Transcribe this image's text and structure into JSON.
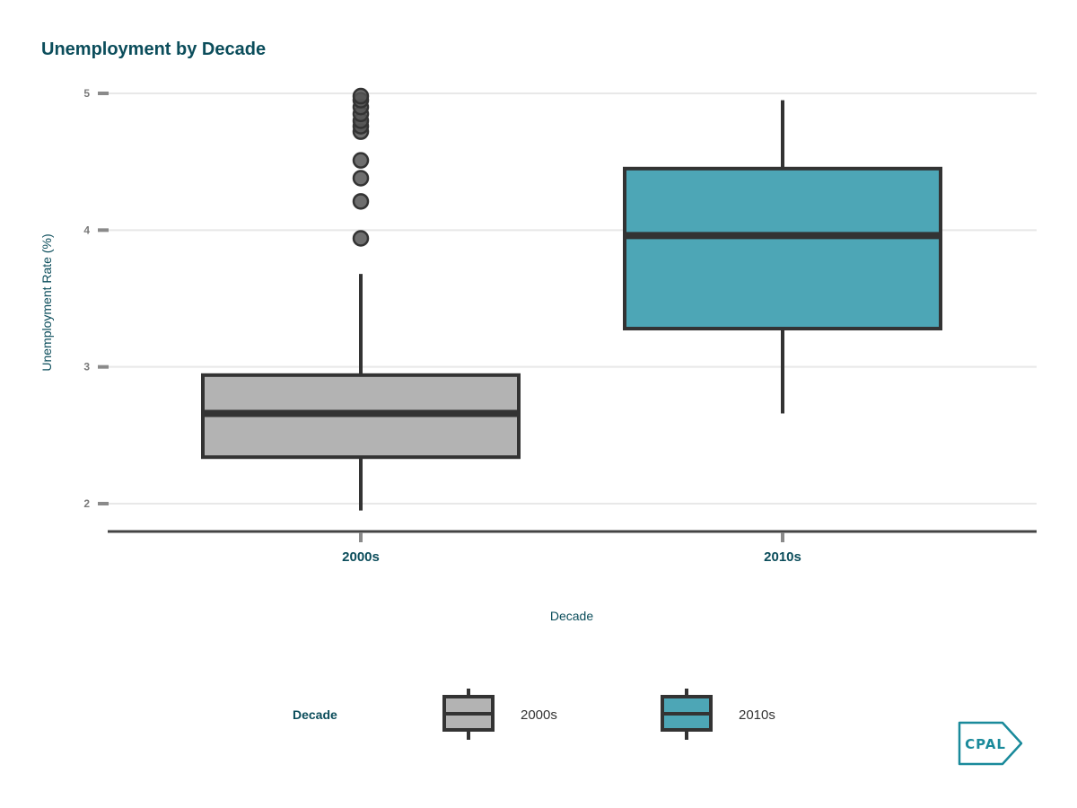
{
  "chart_data": {
    "type": "boxplot",
    "title": "Unemployment by Decade",
    "xlabel": "Decade",
    "ylabel": "Unemployment Rate (%)",
    "categories": [
      "2000s",
      "2010s"
    ],
    "yticks": [
      2,
      3,
      4,
      5
    ],
    "ylim": [
      1.8,
      5.05
    ],
    "grid": true,
    "boxes": [
      {
        "category": "2000s",
        "whisker_low": 1.95,
        "q1": 2.34,
        "median": 2.66,
        "q3": 2.94,
        "whisker_high": 3.68,
        "outliers": [
          3.94,
          4.21,
          4.38,
          4.51,
          4.72,
          4.76,
          4.8,
          4.85,
          4.9,
          4.95,
          4.98
        ],
        "color": "#b3b3b3"
      },
      {
        "category": "2010s",
        "whisker_low": 2.66,
        "q1": 3.28,
        "median": 3.96,
        "q3": 4.45,
        "whisker_high": 4.95,
        "outliers": [],
        "color": "#4da6b6"
      }
    ],
    "legend": {
      "title": "Decade",
      "position": "bottom",
      "entries": [
        {
          "label": "2000s",
          "color": "#b3b3b3"
        },
        {
          "label": "2010s",
          "color": "#4da6b6"
        }
      ]
    }
  },
  "logo": {
    "text": "CPAL",
    "color": "#1a8a9b"
  },
  "colors": {
    "title": "#0b4d5b",
    "axis_title": "#0b4d5b",
    "tick": "#7a7a7a",
    "stroke": "#333333",
    "grid": "#e8e8e8"
  }
}
